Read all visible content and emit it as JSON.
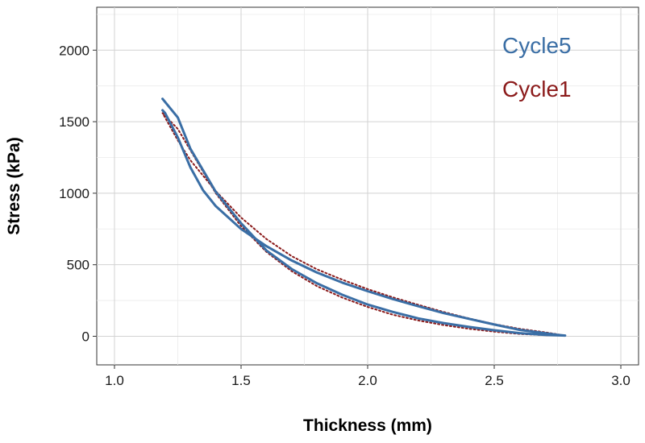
{
  "chart_data": {
    "type": "line",
    "xlabel": "Thickness (mm)",
    "ylabel": "Stress (kPa)",
    "xlim": [
      0.93,
      3.07
    ],
    "ylim": [
      -200,
      2300
    ],
    "x_ticks": [
      1.0,
      1.5,
      2.0,
      2.5,
      3.0
    ],
    "x_tick_labels": [
      "1.0",
      "1.5",
      "2.0",
      "2.5",
      "3.0"
    ],
    "y_ticks": [
      0,
      500,
      1000,
      1500,
      2000
    ],
    "y_tick_labels": [
      "0",
      "500",
      "1000",
      "1500",
      "2000"
    ],
    "grid": true,
    "legend_position": "top-right",
    "series": [
      {
        "name": "Cycle5",
        "color": "#3a6ea5",
        "style": "solid",
        "x": [
          1.19,
          1.25,
          1.3,
          1.4,
          1.5,
          1.6,
          1.7,
          1.8,
          1.9,
          2.0,
          2.1,
          2.2,
          2.3,
          2.4,
          2.5,
          2.6,
          2.7,
          2.78,
          2.75,
          2.7,
          2.6,
          2.5,
          2.4,
          2.3,
          2.2,
          2.1,
          2.0,
          1.9,
          1.8,
          1.7,
          1.6,
          1.5,
          1.4,
          1.35,
          1.3,
          1.25,
          1.2,
          1.19
        ],
        "y": [
          1660,
          1530,
          1310,
          1010,
          790,
          600,
          470,
          370,
          290,
          222,
          170,
          125,
          92,
          65,
          42,
          22,
          10,
          5,
          10,
          22,
          45,
          82,
          122,
          162,
          210,
          260,
          315,
          375,
          445,
          530,
          630,
          750,
          910,
          1020,
          1180,
          1390,
          1560,
          1580
        ]
      },
      {
        "name": "Cycle1",
        "color": "#8b1a1a",
        "style": "dotted",
        "x": [
          1.19,
          1.25,
          1.3,
          1.4,
          1.5,
          1.6,
          1.7,
          1.8,
          1.9,
          2.0,
          2.1,
          2.2,
          2.3,
          2.4,
          2.5,
          2.6,
          2.7,
          2.78,
          2.7,
          2.6,
          2.5,
          2.4,
          2.3,
          2.2,
          2.1,
          2.0,
          1.9,
          1.8,
          1.7,
          1.6,
          1.5,
          1.4,
          1.3,
          1.25,
          1.19
        ],
        "y": [
          1560,
          1450,
          1300,
          1000,
          770,
          590,
          455,
          350,
          270,
          205,
          150,
          110,
          78,
          52,
          32,
          16,
          8,
          5,
          28,
          52,
          85,
          125,
          170,
          220,
          272,
          330,
          395,
          468,
          560,
          680,
          830,
          1015,
          1230,
          1370,
          1560
        ]
      }
    ]
  }
}
